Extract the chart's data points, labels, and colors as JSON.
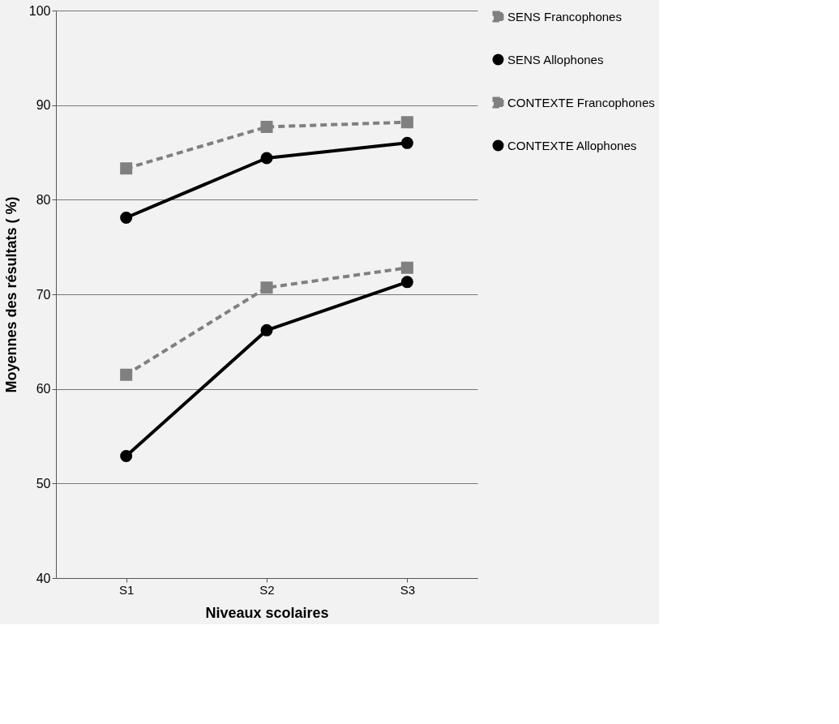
{
  "chart_data": {
    "type": "line",
    "xlabel": "Niveaux scolaires",
    "ylabel": "Moyennes des résultats ( %)",
    "categories": [
      "S1",
      "S2",
      "S3"
    ],
    "series": [
      {
        "name": "SENS Francophones",
        "color": "#808080",
        "line_style": "dashed",
        "marker": "square",
        "values": [
          83.3,
          87.7,
          88.2
        ]
      },
      {
        "name": "SENS Allophones",
        "color": "#000000",
        "line_style": "solid",
        "marker": "circle",
        "values": [
          78.1,
          84.4,
          86.0
        ]
      },
      {
        "name": "CONTEXTE Francophones",
        "color": "#808080",
        "line_style": "dashed",
        "marker": "square",
        "values": [
          61.5,
          70.7,
          72.8
        ]
      },
      {
        "name": "CONTEXTE Allophones",
        "color": "#000000",
        "line_style": "solid",
        "marker": "circle",
        "values": [
          52.9,
          66.2,
          71.3
        ]
      }
    ],
    "ylim": [
      40,
      100
    ],
    "yticks": [
      40,
      50,
      60,
      70,
      80,
      90,
      100
    ],
    "grid": "y",
    "legend": "right"
  }
}
